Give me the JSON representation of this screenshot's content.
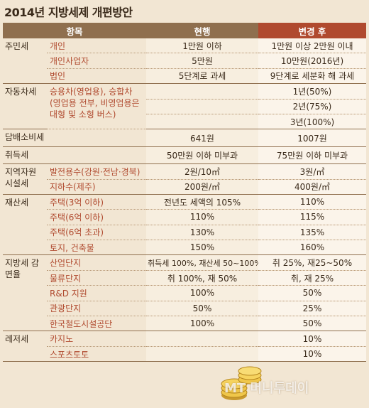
{
  "title": "2014년 지방세제 개편방안",
  "headers": [
    "항목",
    "현행",
    "변경 후"
  ],
  "rows": [
    {
      "cat": "주민세",
      "item": "개인",
      "cur": "1만원 이하",
      "chg": "1만원 이상 2만원 이내"
    },
    {
      "cat": "",
      "item": "개인사업자",
      "cur": "5만원",
      "chg": "10만원(2016년)"
    },
    {
      "cat": "",
      "item": "법인",
      "cur": "5단계로 과세",
      "chg": "9단계로 세분화 해 과세"
    },
    {
      "cat": "자동차세",
      "item": "승용차(영업용), 승합차 (영업용 전부, 비영업용은 대형 및 소형 버스)",
      "cur": "",
      "chg": "1년(50%)"
    },
    {
      "cat": "",
      "item": "",
      "cur": "",
      "chg": "2년(75%)"
    },
    {
      "cat": "",
      "item": "",
      "cur": "",
      "chg": "3년(100%)"
    },
    {
      "cat": "담배소비세",
      "item": "",
      "cur": "641원",
      "chg": "1007원"
    },
    {
      "cat": "취득세",
      "item": "",
      "cur": "50만원 이하 미부과",
      "chg": "75만원 이하 미부과"
    },
    {
      "cat": "지역자원 시설세",
      "item": "발전용수(강원·전남·경북)",
      "cur": "2원/10㎥",
      "chg": "3원/㎥"
    },
    {
      "cat": "",
      "item": "지하수(제주)",
      "cur": "200원/㎥",
      "chg": "400원/㎥"
    },
    {
      "cat": "재산세",
      "item": "주택(3억 이하)",
      "cur": "전년도 세액의 105%",
      "chg": "110%"
    },
    {
      "cat": "",
      "item": "주택(6억 이하)",
      "cur": "110%",
      "chg": "115%"
    },
    {
      "cat": "",
      "item": "주택(6억 초과)",
      "cur": "130%",
      "chg": "135%"
    },
    {
      "cat": "",
      "item": "토지, 건축물",
      "cur": "150%",
      "chg": "160%"
    },
    {
      "cat": "지방세 감면율",
      "item": "산업단지",
      "cur": "취득세 100%, 재산세 50~100%",
      "chg": "취 25%, 재25~50%"
    },
    {
      "cat": "",
      "item": "물류단지",
      "cur": "취 100%, 재 50%",
      "chg": "취, 재 25%"
    },
    {
      "cat": "",
      "item": "R&D 지원",
      "cur": "100%",
      "chg": "50%"
    },
    {
      "cat": "",
      "item": "관광단지",
      "cur": "50%",
      "chg": "25%"
    },
    {
      "cat": "",
      "item": "한국철도시설공단",
      "cur": "100%",
      "chg": "50%"
    },
    {
      "cat": "레저세",
      "item": "카지노",
      "cur": "",
      "chg": "10%"
    },
    {
      "cat": "",
      "item": "스포츠토토",
      "cur": "",
      "chg": "10%"
    }
  ],
  "watermark": "MT 머니투데이"
}
